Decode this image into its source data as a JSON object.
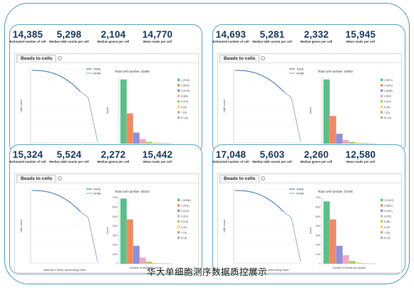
{
  "caption": "华大单细胞测序数据质控展示",
  "colors": {
    "outline": "#4f9bb4",
    "stat_value": "#1b3b61",
    "curve": "#3a6fa8",
    "bar_palette": [
      "#5cbf8a",
      "#f08a5d",
      "#8f8fd9",
      "#f3a6c8",
      "#a9d46a",
      "#f7d45b",
      "#c4a882",
      "#b3b3b3"
    ]
  },
  "panels": [
    {
      "stats": [
        {
          "value": "14,385",
          "label": "Estimated number of cell"
        },
        {
          "value": "5,298",
          "label": "Median UMI counts per cell"
        },
        {
          "value": "2,104",
          "label": "Median genes per cell"
        },
        {
          "value": "14,770",
          "label": "Mean reads per cell"
        }
      ],
      "card_title": "Beads to cells",
      "chart_data": [
        {
          "type": "line",
          "xlabel": "Barcode in Rank descending Order",
          "ylabel": "UMI count",
          "legend": [
            "TRUE",
            "NONE"
          ],
          "legend_position": "top-right",
          "series": [
            {
              "name": "TRUE",
              "curve_shape": "knee"
            },
            {
              "name": "NONE",
              "curve_shape": "tail"
            }
          ]
        },
        {
          "type": "bar",
          "title": "Total cell number 14385",
          "xlabel": "Number of beads per droplet",
          "ylabel": "Count",
          "categories": [
            "1",
            "2",
            "3",
            "4",
            "5",
            "6",
            "7",
            ">=8"
          ],
          "values": [
            0.7,
            0.33,
            0.12,
            0.05,
            0.02,
            0.01,
            0.005,
            0.003
          ],
          "legend": [
            "1 (9718)",
            "2 (3041)",
            "3 (1076)",
            "4 (363)",
            "5 (121)",
            "6 (41)",
            "7 (15)",
            "8+ (10)"
          ]
        }
      ]
    },
    {
      "stats": [
        {
          "value": "14,693",
          "label": "Estimated number of cell"
        },
        {
          "value": "5,281",
          "label": "Median UMI counts per cell"
        },
        {
          "value": "2,332",
          "label": "Median genes per cell"
        },
        {
          "value": "15,945",
          "label": "Mean reads per cell"
        }
      ],
      "card_title": "Beads to cells",
      "chart_data": [
        {
          "type": "line",
          "xlabel": "Barcode in Rank descending Order",
          "ylabel": "UMI count",
          "legend": [
            "TRUE",
            "NONE"
          ],
          "legend_position": "top-right",
          "series": [
            {
              "name": "TRUE",
              "curve_shape": "knee"
            },
            {
              "name": "NONE",
              "curve_shape": "tail"
            }
          ]
        },
        {
          "type": "bar",
          "title": "Total cell number 14693",
          "xlabel": "Number of beads per droplet",
          "ylabel": "Count",
          "categories": [
            "1",
            "2",
            "3",
            "4",
            "5",
            "6",
            "7",
            ">=8"
          ],
          "values": [
            0.72,
            0.31,
            0.11,
            0.04,
            0.02,
            0.01,
            0.005,
            0.003
          ],
          "legend": [
            "1 (9871)",
            "2 (3101)",
            "3 (1089)",
            "4 (402)",
            "5 (142)",
            "6 (53)",
            "7 (21)",
            "8+ (14)"
          ]
        }
      ]
    },
    {
      "stats": [
        {
          "value": "15,324",
          "label": "Estimated number of cell"
        },
        {
          "value": "5,524",
          "label": "Median UMI counts per cell"
        },
        {
          "value": "2,272",
          "label": "Median genes per cell"
        },
        {
          "value": "15,442",
          "label": "Mean reads per cell"
        }
      ],
      "card_title": "Beads to cells",
      "chart_data": [
        {
          "type": "line",
          "xlabel": "Barcode in Rank descending Order",
          "ylabel": "UMI count",
          "legend": [
            "TRUE",
            "NONE"
          ],
          "legend_position": "top-right",
          "series": [
            {
              "name": "TRUE",
              "curve_shape": "knee"
            },
            {
              "name": "NONE",
              "curve_shape": "tail"
            }
          ]
        },
        {
          "type": "bar",
          "title": "Total cell number 15324",
          "xlabel": "Number of beads per droplet",
          "ylabel": "Count",
          "ylim": [
            0,
            7000
          ],
          "yticks": [
            "0",
            "1000",
            "2000",
            "3000",
            "4000",
            "5000",
            "6000",
            "7000"
          ],
          "categories": [
            "1",
            "2",
            "3",
            "4",
            "5",
            "6",
            "7",
            ">=8"
          ],
          "values": [
            6900,
            4700,
            1900,
            650,
            220,
            80,
            30,
            15
          ],
          "legend": [
            "1 (10384)",
            "2 (3311)",
            "3 (1122)",
            "4 (331)",
            "5 (114)",
            "6 (41)",
            "7 (13)",
            "8+ (8)"
          ]
        }
      ]
    },
    {
      "stats": [
        {
          "value": "17,048",
          "label": "Estimated number of cell"
        },
        {
          "value": "5,603",
          "label": "Median UMI counts per cell"
        },
        {
          "value": "2,260",
          "label": "Median genes per cell"
        },
        {
          "value": "12,580",
          "label": "Mean reads per cell"
        }
      ],
      "card_title": "Beads to cells",
      "chart_data": [
        {
          "type": "line",
          "xlabel": "Barcode in Rank descending Order",
          "ylabel": "UMI count",
          "legend": [
            "TRUE",
            "NONE"
          ],
          "legend_position": "top-right",
          "series": [
            {
              "name": "TRUE",
              "curve_shape": "knee"
            },
            {
              "name": "NONE",
              "curve_shape": "tail"
            }
          ]
        },
        {
          "type": "bar",
          "title": "Total cell number 17048",
          "xlabel": "Number of beads per droplet",
          "ylabel": "Count",
          "ylim": [
            0,
            7000
          ],
          "yticks": [
            "0",
            "1000",
            "2000",
            "3000",
            "4000",
            "5000",
            "6000",
            "7000"
          ],
          "categories": [
            "1",
            "2",
            "3",
            "4",
            "5",
            "6",
            "7",
            ">=8"
          ],
          "values": [
            6600,
            4700,
            1900,
            900,
            300,
            120,
            40,
            20
          ],
          "legend": [
            "1 (11512)",
            "2 (3821)",
            "3 (1201)",
            "4 (372)",
            "5 (98)",
            "6 (29)",
            "7 (10)",
            "8+ (5)"
          ]
        }
      ]
    }
  ]
}
